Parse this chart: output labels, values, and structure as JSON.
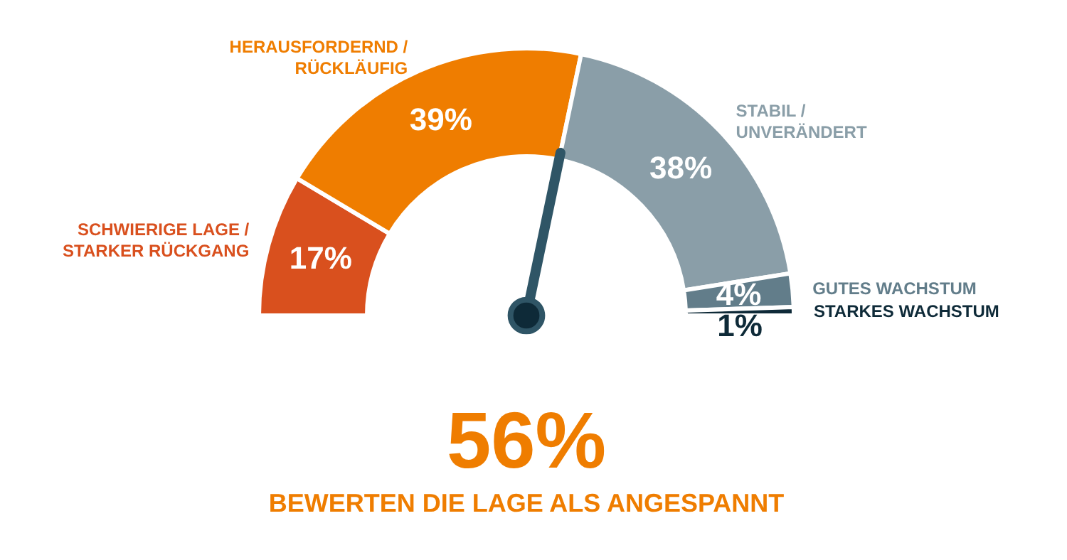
{
  "chart_data": {
    "type": "donut",
    "categories": [
      "SCHWIERIGE LAGE /\nSTARKER RÜCKGANG",
      "HERAUSFORDERND /\nRÜCKLÄUFIG",
      "STABIL /\nUNVERÄNDERT",
      "GUTES WACHSTUM",
      "STARKES WACHSTUM"
    ],
    "values": [
      17,
      39,
      38,
      4,
      1
    ],
    "value_labels": [
      "17%",
      "39%",
      "38%",
      "4%",
      "1%"
    ],
    "colors": [
      "#d9501e",
      "#ef7d00",
      "#8a9ea8",
      "#627d8a",
      "#0e2a38"
    ],
    "needle": "HERAUSFORDERND /\nRÜCKLÄUFIG",
    "annotations": [
      "56%",
      "BEWERTEN DIE LAGE ALS ANGESPANNT"
    ]
  }
}
